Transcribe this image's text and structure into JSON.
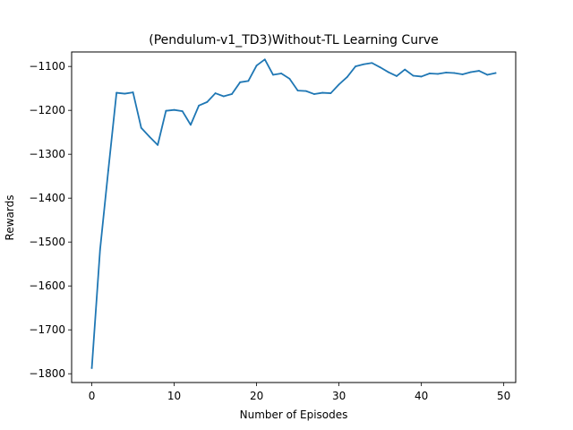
{
  "chart_data": {
    "type": "line",
    "title": "(Pendulum-v1_TD3)Without-TL Learning Curve",
    "xlabel": "Number of Episodes",
    "ylabel": "Rewards",
    "xlim": [
      -2.45,
      51.45
    ],
    "ylim": [
      -1820,
      -1067
    ],
    "xticks": [
      0,
      10,
      20,
      30,
      40,
      50
    ],
    "yticks": [
      -1800,
      -1700,
      -1600,
      -1500,
      -1400,
      -1300,
      -1200,
      -1100
    ],
    "grid": false,
    "line_color": "#1f77b4",
    "series": [
      {
        "x": [
          0,
          1,
          2,
          3,
          4,
          5,
          6,
          7,
          8,
          9,
          10,
          11,
          12,
          13,
          14,
          15,
          16,
          17,
          18,
          19,
          20,
          21,
          22,
          23,
          24,
          25,
          26,
          27,
          28,
          29,
          30,
          31,
          32,
          33,
          34,
          35,
          36,
          37,
          38,
          39,
          40,
          41,
          42,
          43,
          44,
          45,
          46,
          47,
          48,
          49
        ],
        "values": [
          -1787,
          -1518,
          -1337,
          -1160,
          -1162,
          -1159,
          -1240,
          -1260,
          -1279,
          -1201,
          -1199,
          -1202,
          -1233,
          -1189,
          -1181,
          -1161,
          -1168,
          -1163,
          -1136,
          -1133,
          -1098,
          -1084,
          -1119,
          -1116,
          -1128,
          -1155,
          -1156,
          -1163,
          -1160,
          -1161,
          -1141,
          -1124,
          -1100,
          -1095,
          -1092,
          -1102,
          -1113,
          -1122,
          -1107,
          -1121,
          -1123,
          -1116,
          -1117,
          -1114,
          -1115,
          -1118,
          -1113,
          -1110,
          -1119,
          -1115
        ]
      }
    ]
  }
}
